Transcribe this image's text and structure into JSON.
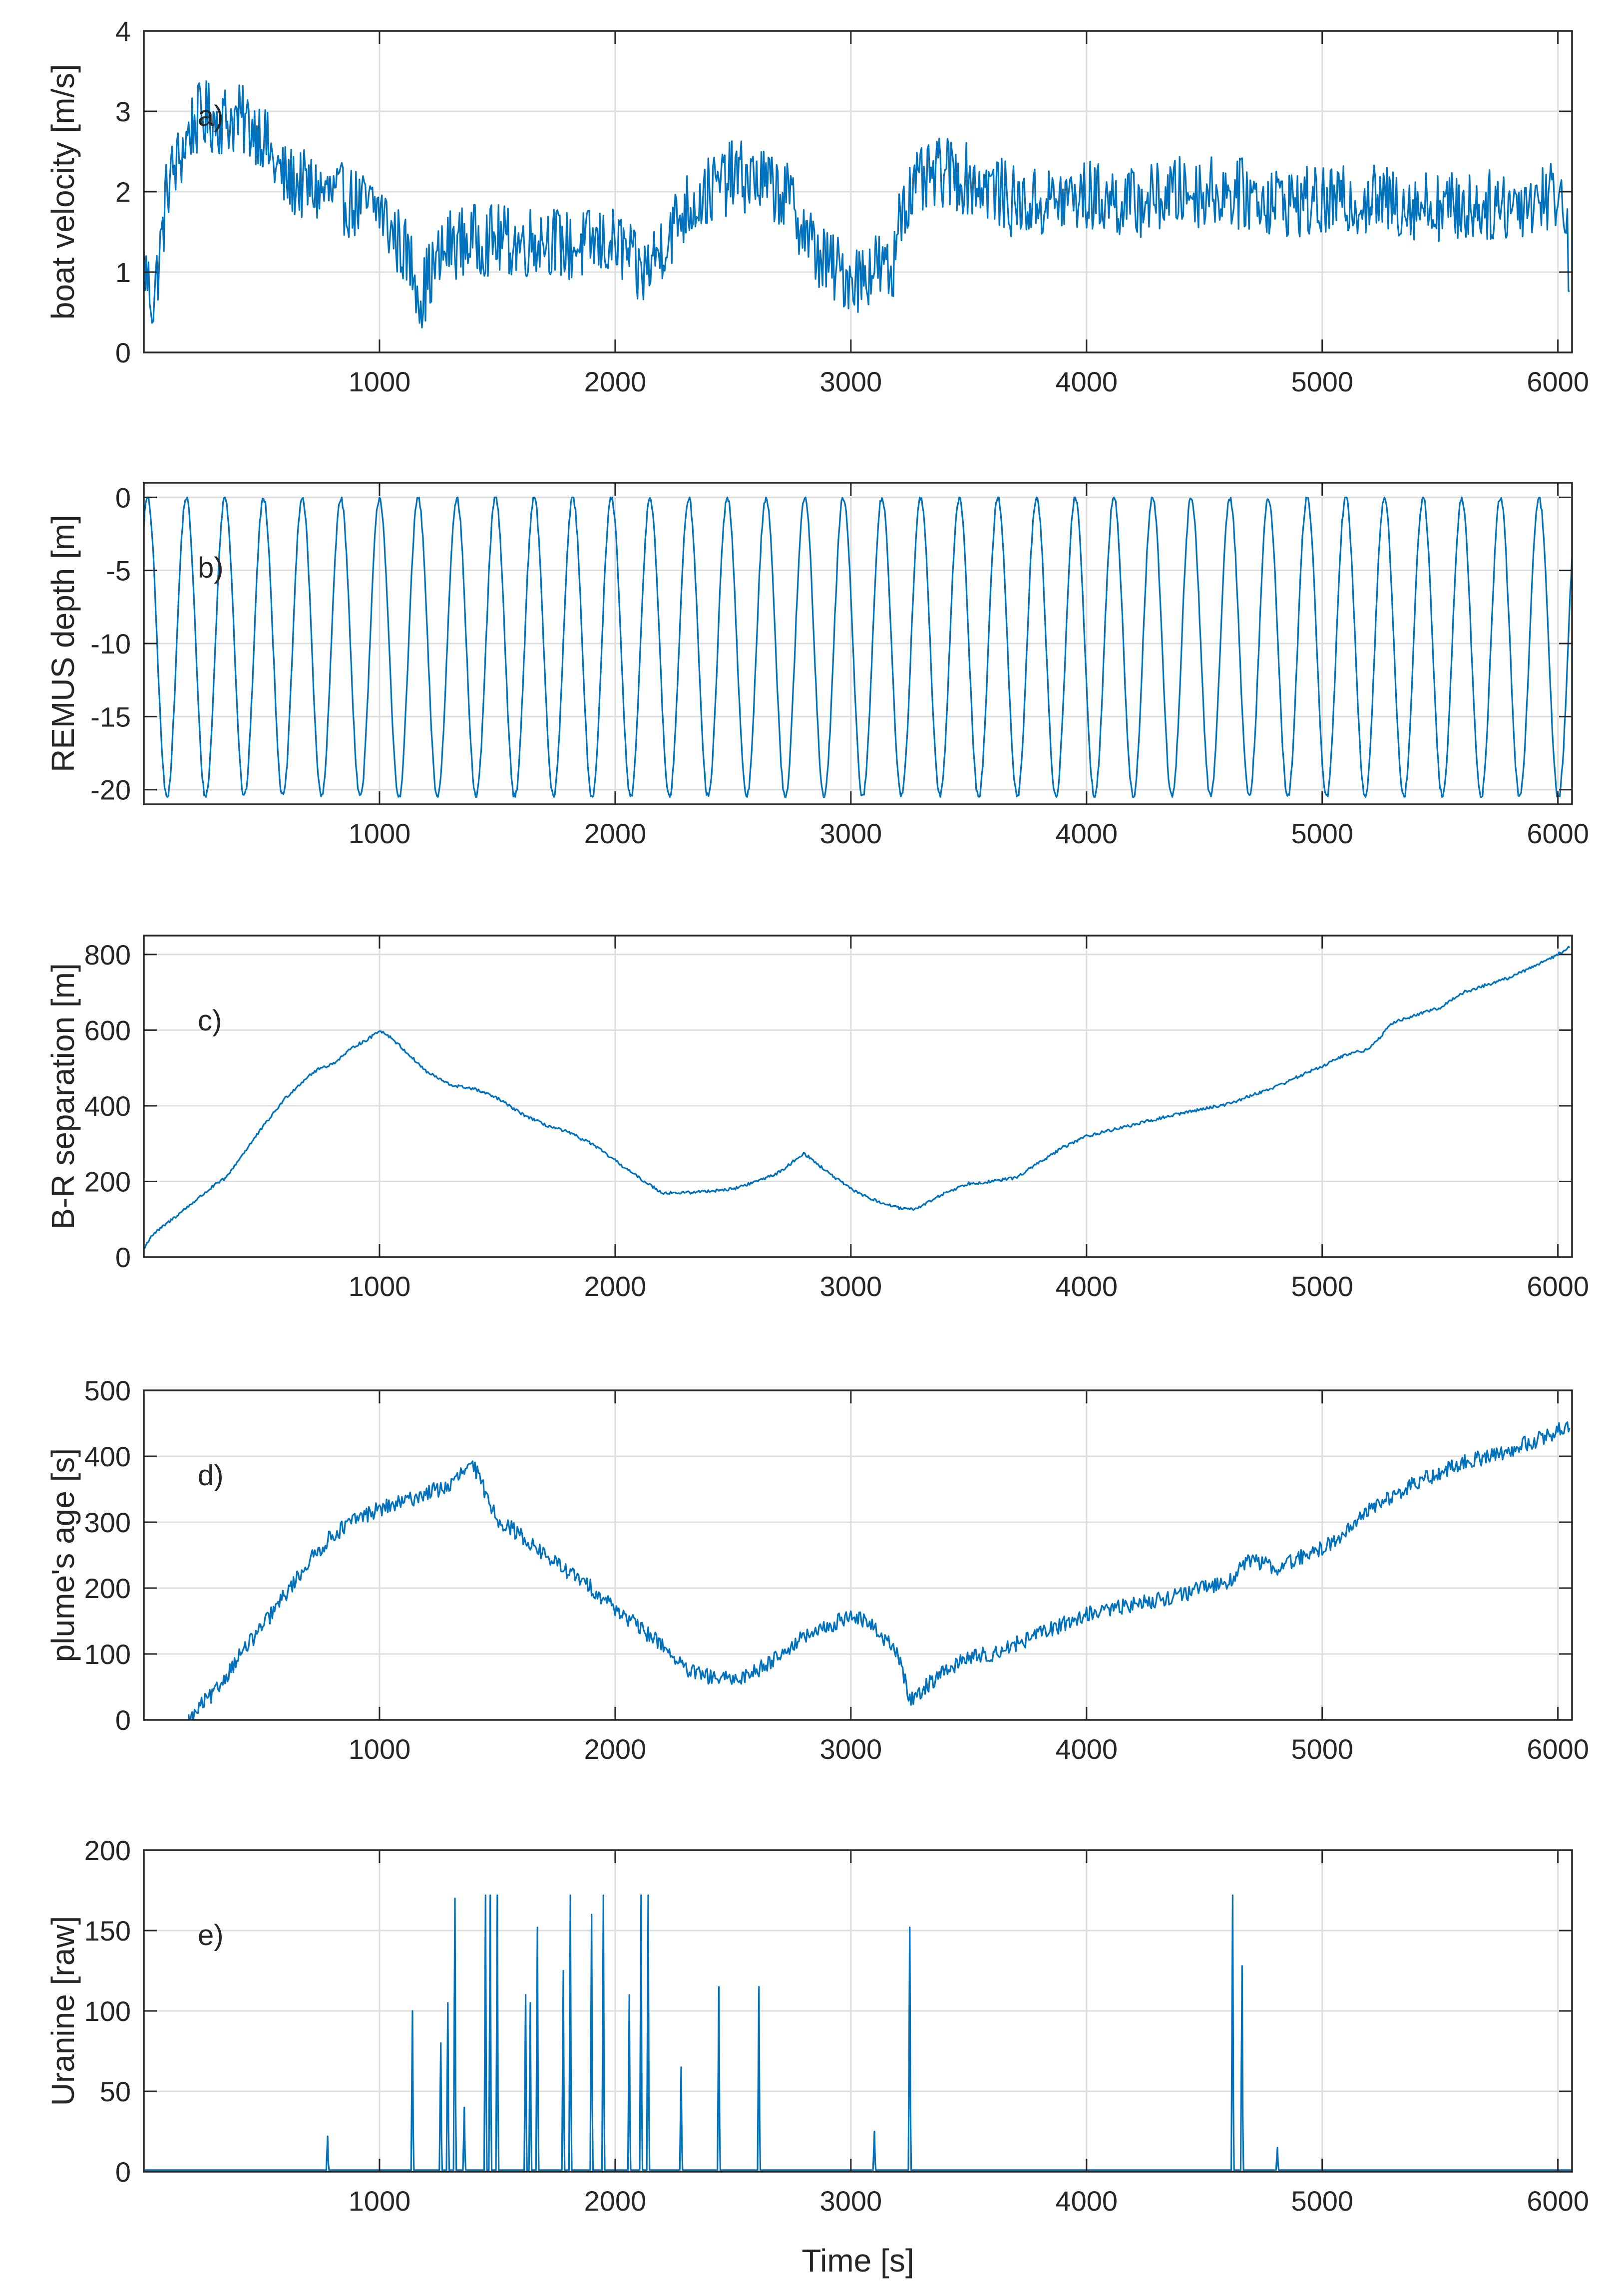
{
  "chart_data": [
    {
      "id": "a",
      "type": "line",
      "annotation": "a)",
      "ylabel": "boat velocity [m/s]",
      "xlabel": "",
      "xlim": [
        0,
        6060
      ],
      "ylim": [
        0,
        4
      ],
      "yticks": [
        0,
        1,
        2,
        3,
        4
      ],
      "xticks": [
        1000,
        2000,
        3000,
        4000,
        5000,
        6000
      ],
      "grid": true,
      "noise": 0.45,
      "series": [
        {
          "name": "boat velocity",
          "x": [
            0,
            40,
            80,
            100,
            150,
            200,
            250,
            300,
            400,
            500,
            550,
            600,
            700,
            800,
            900,
            950,
            1000,
            1050,
            1100,
            1150,
            1180,
            1200,
            1300,
            1400,
            1500,
            1600,
            1700,
            1800,
            1900,
            2000,
            2050,
            2100,
            2150,
            2200,
            2300,
            2400,
            2500,
            2600,
            2700,
            2750,
            2800,
            2850,
            2900,
            2950,
            3000,
            3050,
            3100,
            3150,
            3180,
            3200,
            3300,
            3400,
            3500,
            3600,
            3700,
            3800,
            4000,
            4200,
            4400,
            4600,
            4800,
            5000,
            5200,
            5400,
            5600,
            5800,
            5950,
            6000,
            6030,
            6050
          ],
          "values": [
            1.1,
            0.6,
            1.5,
            2.1,
            2.4,
            2.8,
            2.95,
            2.9,
            2.9,
            2.75,
            2.35,
            2.15,
            2.05,
            1.95,
            1.85,
            1.8,
            1.8,
            1.5,
            1.3,
            1.0,
            0.65,
            0.9,
            1.35,
            1.4,
            1.4,
            1.35,
            1.45,
            1.3,
            1.35,
            1.35,
            1.25,
            0.95,
            1.1,
            1.35,
            1.8,
            2.0,
            2.2,
            2.15,
            2.0,
            1.85,
            1.55,
            1.25,
            1.1,
            1.0,
            0.95,
            0.95,
            1.1,
            1.0,
            0.9,
            1.8,
            2.1,
            2.25,
            2.15,
            2.05,
            1.85,
            1.85,
            1.95,
            1.85,
            2.0,
            2.0,
            1.9,
            1.85,
            1.9,
            1.85,
            1.8,
            1.85,
            1.95,
            2.0,
            1.8,
            0.9
          ]
        }
      ]
    },
    {
      "id": "b",
      "type": "line",
      "annotation": "b)",
      "ylabel": "REMUS depth [m]",
      "xlabel": "",
      "xlim": [
        0,
        6060
      ],
      "ylim": [
        -21,
        1
      ],
      "yticks": [
        -20,
        -15,
        -10,
        -5,
        0
      ],
      "xticks": [
        1000,
        2000,
        3000,
        4000,
        5000,
        6000
      ],
      "grid": true,
      "pattern": {
        "kind": "yo-yo",
        "period_s": 164,
        "phase_s": 16,
        "surface_depth": 0,
        "bottom_depth": -20.5,
        "range_s": [
          0,
          6060
        ]
      }
    },
    {
      "id": "c",
      "type": "line",
      "annotation": "c)",
      "ylabel": "B-R separation [m]",
      "xlabel": "",
      "xlim": [
        0,
        6060
      ],
      "ylim": [
        0,
        850
      ],
      "yticks": [
        0,
        200,
        400,
        600,
        800
      ],
      "xticks": [
        1000,
        2000,
        3000,
        4000,
        5000,
        6000
      ],
      "grid": true,
      "noise": 4,
      "series": [
        {
          "name": "boat-REMUS separation",
          "x": [
            0,
            30,
            100,
            200,
            300,
            350,
            400,
            500,
            600,
            700,
            750,
            800,
            900,
            950,
            1000,
            1050,
            1100,
            1200,
            1300,
            1400,
            1500,
            1600,
            1700,
            1800,
            1900,
            2000,
            2100,
            2200,
            2300,
            2400,
            2500,
            2600,
            2700,
            2800,
            2900,
            3000,
            3100,
            3200,
            3250,
            3300,
            3400,
            3500,
            3600,
            3700,
            3800,
            3900,
            4000,
            4200,
            4400,
            4600,
            4800,
            5000,
            5100,
            5200,
            5300,
            5400,
            5500,
            5600,
            5800,
            6000,
            6050
          ],
          "values": [
            20,
            55,
            90,
            140,
            190,
            210,
            255,
            340,
            420,
            480,
            500,
            510,
            560,
            575,
            600,
            580,
            550,
            490,
            455,
            445,
            420,
            380,
            350,
            330,
            300,
            255,
            210,
            170,
            170,
            175,
            180,
            200,
            225,
            275,
            225,
            180,
            150,
            130,
            125,
            135,
            170,
            195,
            200,
            210,
            250,
            290,
            320,
            350,
            380,
            405,
            450,
            505,
            535,
            550,
            620,
            640,
            660,
            700,
            740,
            800,
            820
          ]
        }
      ]
    },
    {
      "id": "d",
      "type": "line",
      "annotation": "d)",
      "ylabel": "plume's age [s]",
      "xlabel": "",
      "xlim": [
        0,
        6060
      ],
      "ylim": [
        0,
        500
      ],
      "yticks": [
        0,
        100,
        200,
        300,
        400,
        500
      ],
      "xticks": [
        1000,
        2000,
        3000,
        4000,
        5000,
        6000
      ],
      "grid": true,
      "noise": 12,
      "series": [
        {
          "name": "plume's age",
          "x": [
            190,
            210,
            250,
            300,
            400,
            500,
            600,
            700,
            800,
            900,
            1000,
            1100,
            1200,
            1300,
            1350,
            1400,
            1500,
            1600,
            1700,
            1800,
            1900,
            2000,
            2100,
            2200,
            2300,
            2400,
            2500,
            2600,
            2700,
            2800,
            2900,
            3000,
            3100,
            3200,
            3250,
            3300,
            3400,
            3500,
            3600,
            3700,
            3800,
            3900,
            4000,
            4200,
            4400,
            4600,
            4700,
            4800,
            5000,
            5100,
            5200,
            5400,
            5600,
            5800,
            5950,
            6050
          ],
          "values": [
            0,
            5,
            25,
            40,
            95,
            140,
            190,
            240,
            280,
            305,
            320,
            330,
            345,
            355,
            375,
            385,
            305,
            280,
            250,
            225,
            200,
            170,
            140,
            115,
            75,
            65,
            60,
            75,
            100,
            125,
            140,
            160,
            140,
            100,
            30,
            45,
            75,
            95,
            100,
            115,
            130,
            145,
            160,
            175,
            190,
            210,
            245,
            230,
            260,
            285,
            320,
            360,
            390,
            410,
            430,
            450
          ]
        }
      ]
    },
    {
      "id": "e",
      "type": "line",
      "annotation": "e)",
      "ylabel": "Uranine [raw]",
      "xlabel": "Time [s]",
      "xlim": [
        0,
        6060
      ],
      "ylim": [
        0,
        200
      ],
      "yticks": [
        0,
        50,
        100,
        150,
        200
      ],
      "xticks": [
        1000,
        2000,
        3000,
        4000,
        5000,
        6000
      ],
      "grid": true,
      "baseline": 1,
      "peaks": [
        {
          "x": 780,
          "value": 22
        },
        {
          "x": 1140,
          "value": 100
        },
        {
          "x": 1260,
          "value": 80
        },
        {
          "x": 1290,
          "value": 105
        },
        {
          "x": 1320,
          "value": 170
        },
        {
          "x": 1360,
          "value": 40
        },
        {
          "x": 1450,
          "value": 172
        },
        {
          "x": 1470,
          "value": 172
        },
        {
          "x": 1500,
          "value": 172
        },
        {
          "x": 1620,
          "value": 110
        },
        {
          "x": 1640,
          "value": 105
        },
        {
          "x": 1670,
          "value": 152
        },
        {
          "x": 1780,
          "value": 125
        },
        {
          "x": 1810,
          "value": 172
        },
        {
          "x": 1900,
          "value": 160
        },
        {
          "x": 1950,
          "value": 172
        },
        {
          "x": 2060,
          "value": 110
        },
        {
          "x": 2110,
          "value": 172
        },
        {
          "x": 2140,
          "value": 172
        },
        {
          "x": 2280,
          "value": 65
        },
        {
          "x": 2440,
          "value": 115
        },
        {
          "x": 2610,
          "value": 115
        },
        {
          "x": 3100,
          "value": 25
        },
        {
          "x": 3250,
          "value": 152
        },
        {
          "x": 4620,
          "value": 172
        },
        {
          "x": 4660,
          "value": 128
        },
        {
          "x": 4810,
          "value": 15
        }
      ]
    }
  ],
  "style": {
    "line_color": "#0072bd",
    "grid_color": "#dedede",
    "axis_color": "#262626",
    "background": "#ffffff"
  }
}
